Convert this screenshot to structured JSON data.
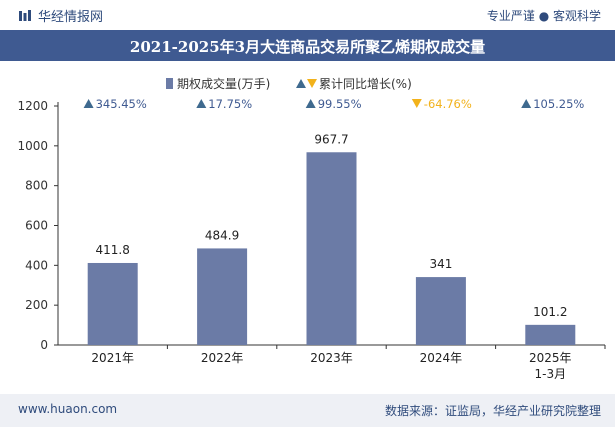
{
  "header": {
    "brand": "华经情报网",
    "tagline": "专业严谨 ● 客观科学"
  },
  "footer": {
    "website": "www.huaon.com",
    "source": "数据来源：证监局，华经产业研究院整理"
  },
  "chart_data": {
    "type": "bar",
    "title": "2021-2025年3月大连商品交易所聚乙烯期权成交量",
    "categories": [
      "2021年",
      "2022年",
      "2023年",
      "2024年",
      "2025年\n1-3月"
    ],
    "series": [
      {
        "name": "期权成交量(万手)",
        "values": [
          411.8,
          484.9,
          967.7,
          341,
          101.2
        ],
        "data_labels": [
          "411.8",
          "484.9",
          "967.7",
          "341",
          "101.2"
        ]
      }
    ],
    "growth": {
      "name": "累计同比增长(%)",
      "values": [
        345.45,
        17.75,
        99.55,
        -64.76,
        105.25
      ],
      "labels": [
        "345.45%",
        "17.75%",
        "99.55%",
        "-64.76%",
        "105.25%"
      ]
    },
    "ylim": [
      0,
      1200
    ],
    "yticks": [
      0,
      200,
      400,
      600,
      800,
      1000,
      1200
    ],
    "ytick_labels": [
      "0",
      "200",
      "400",
      "600",
      "800",
      "1000",
      "1200"
    ],
    "grid": false,
    "legend_position": "top-center",
    "colors": {
      "bar": "#6b7ba6",
      "up": "#3f6a8f",
      "down": "#f2b21b",
      "down_text": "#f2b21b",
      "up_text": "#3f5a91"
    }
  }
}
